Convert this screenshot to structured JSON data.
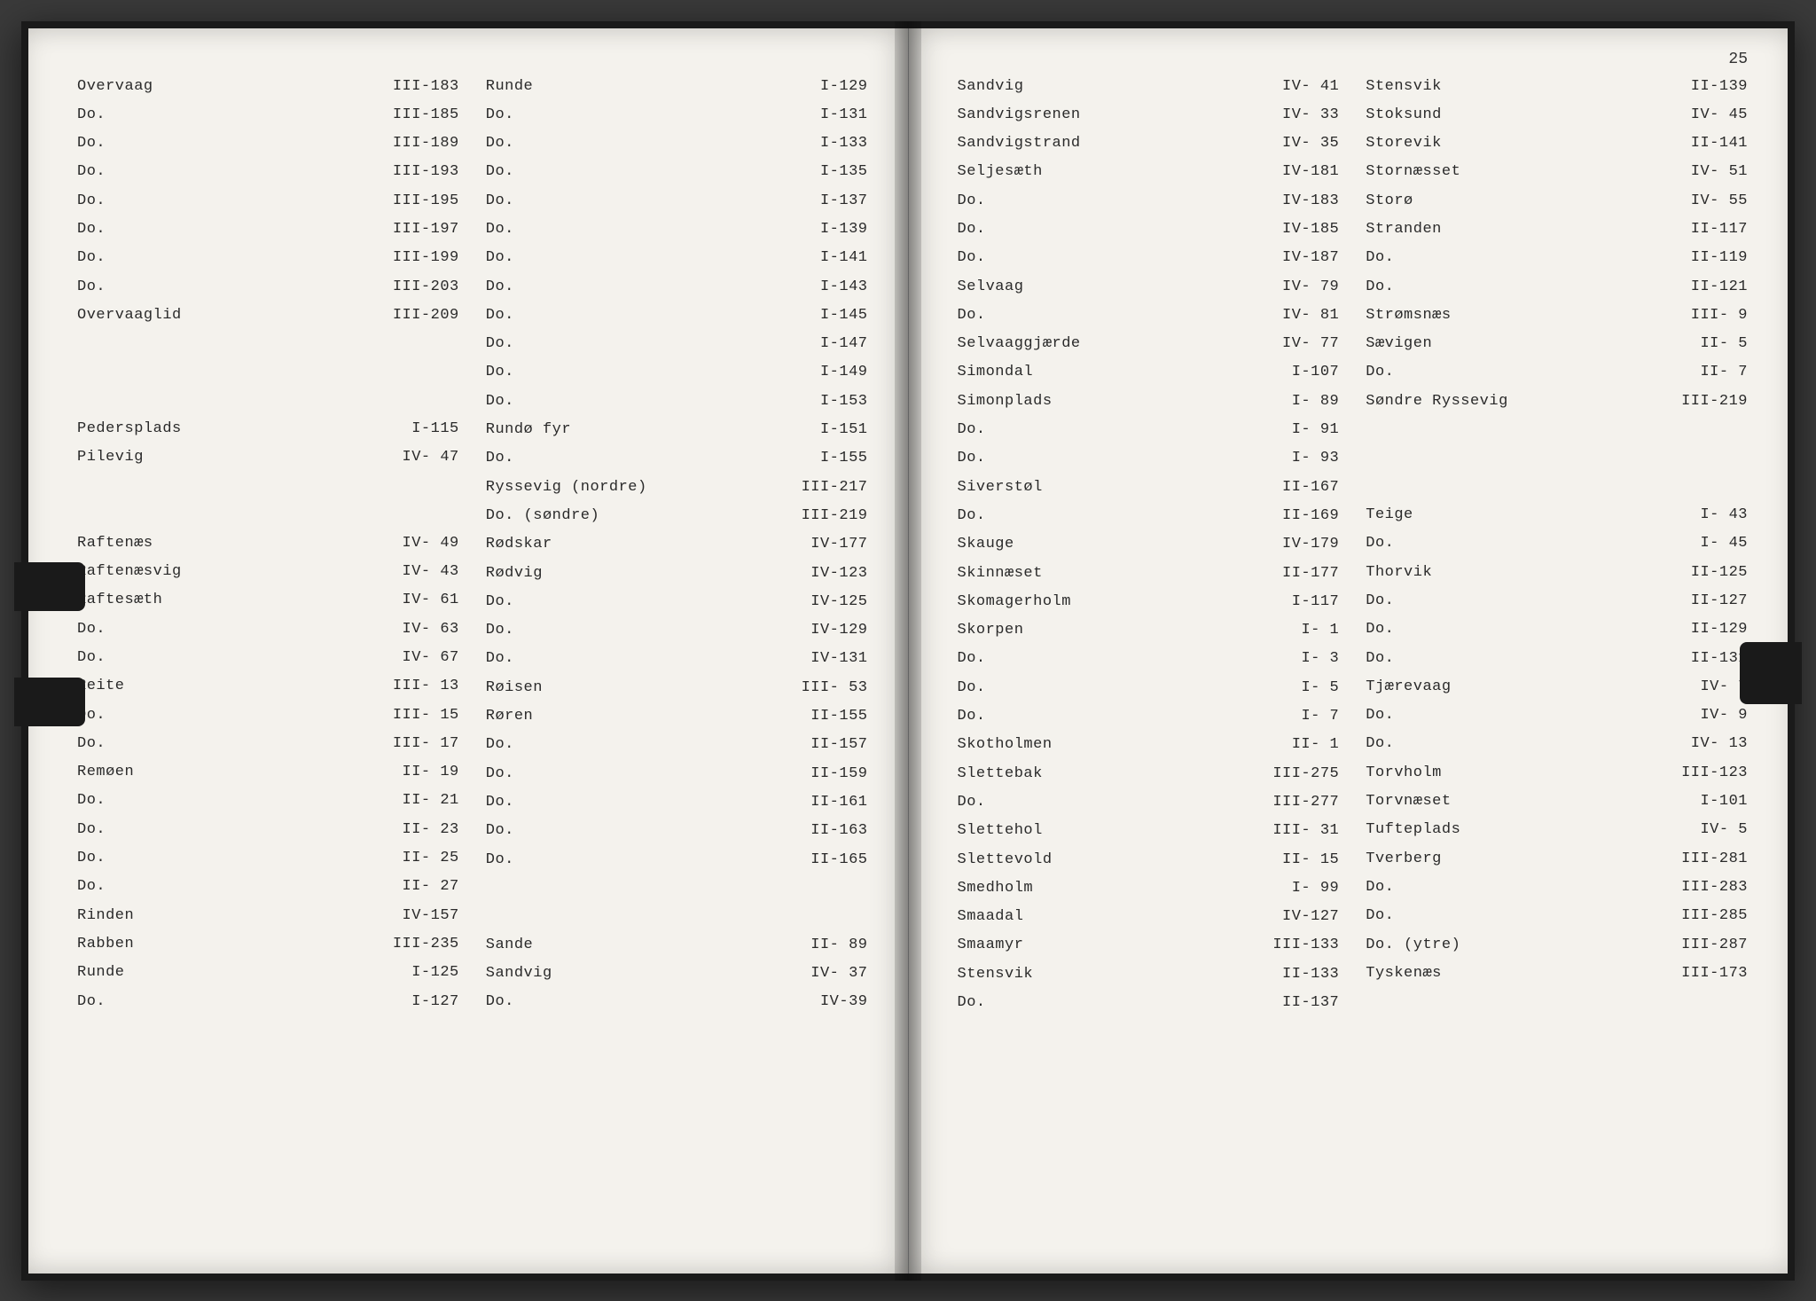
{
  "pageNumber": "25",
  "left": {
    "col1": [
      {
        "name": "Overvaag",
        "ref": "III-183"
      },
      {
        "name": "Do.",
        "ref": "III-185"
      },
      {
        "name": "Do.",
        "ref": "III-189"
      },
      {
        "name": "Do.",
        "ref": "III-193"
      },
      {
        "name": "Do.",
        "ref": "III-195"
      },
      {
        "name": "Do.",
        "ref": "III-197"
      },
      {
        "name": "Do.",
        "ref": "III-199"
      },
      {
        "name": "Do.",
        "ref": "III-203"
      },
      {
        "name": "Overvaaglid",
        "ref": "III-209"
      },
      {
        "gap": true
      },
      {
        "gap": true
      },
      {
        "gap": true
      },
      {
        "name": "Pedersplads",
        "ref": "I-115"
      },
      {
        "name": "Pilevig",
        "ref": "IV- 47"
      },
      {
        "gap": true
      },
      {
        "gap": true
      },
      {
        "name": "Raftenæs",
        "ref": "IV- 49"
      },
      {
        "name": "Raftenæsvig",
        "ref": "IV- 43"
      },
      {
        "name": "Raftesæth",
        "ref": "IV- 61"
      },
      {
        "name": "Do.",
        "ref": "IV- 63"
      },
      {
        "name": "Do.",
        "ref": "IV- 67"
      },
      {
        "name": "Reite",
        "ref": "III- 13"
      },
      {
        "name": "Do.",
        "ref": "III- 15"
      },
      {
        "name": "Do.",
        "ref": "III- 17"
      },
      {
        "name": "Remøen",
        "ref": "II- 19"
      },
      {
        "name": "Do.",
        "ref": "II- 21"
      },
      {
        "name": "Do.",
        "ref": "II- 23"
      },
      {
        "name": "Do.",
        "ref": "II- 25"
      },
      {
        "name": "Do.",
        "ref": "II- 27"
      },
      {
        "name": "Rinden",
        "ref": "IV-157"
      },
      {
        "name": "Rabben",
        "ref": "III-235"
      },
      {
        "name": "Runde",
        "ref": "I-125"
      },
      {
        "name": "Do.",
        "ref": "I-127"
      }
    ],
    "col2": [
      {
        "name": "Runde",
        "ref": "I-129"
      },
      {
        "name": "Do.",
        "ref": "I-131"
      },
      {
        "name": "Do.",
        "ref": "I-133"
      },
      {
        "name": "Do.",
        "ref": "I-135"
      },
      {
        "name": "Do.",
        "ref": "I-137"
      },
      {
        "name": "Do.",
        "ref": "I-139"
      },
      {
        "name": "Do.",
        "ref": "I-141"
      },
      {
        "name": "Do.",
        "ref": "I-143"
      },
      {
        "name": "Do.",
        "ref": "I-145"
      },
      {
        "name": "Do.",
        "ref": "I-147"
      },
      {
        "name": "Do.",
        "ref": "I-149"
      },
      {
        "name": "Do.",
        "ref": "I-153"
      },
      {
        "name": "Rundø fyr",
        "ref": "I-151"
      },
      {
        "name": "Do.",
        "ref": "I-155"
      },
      {
        "name": "Ryssevig (nordre)",
        "ref": "III-217"
      },
      {
        "name": "Do.    (søndre)",
        "ref": "III-219"
      },
      {
        "name": "Rødskar",
        "ref": "IV-177"
      },
      {
        "name": "Rødvig",
        "ref": "IV-123"
      },
      {
        "name": "Do.",
        "ref": "IV-125"
      },
      {
        "name": "Do.",
        "ref": "IV-129"
      },
      {
        "name": "Do.",
        "ref": "IV-131"
      },
      {
        "name": "Røisen",
        "ref": "III- 53"
      },
      {
        "name": "Røren",
        "ref": "II-155"
      },
      {
        "name": "Do.",
        "ref": "II-157"
      },
      {
        "name": "Do.",
        "ref": "II-159"
      },
      {
        "name": "Do.",
        "ref": "II-161"
      },
      {
        "name": "Do.",
        "ref": "II-163"
      },
      {
        "name": "Do.",
        "ref": "II-165"
      },
      {
        "gap": true
      },
      {
        "gap": true
      },
      {
        "name": "Sande",
        "ref": "II- 89"
      },
      {
        "name": "Sandvig",
        "ref": "IV- 37"
      },
      {
        "name": "Do.",
        "ref": "IV-39"
      }
    ]
  },
  "right": {
    "col1": [
      {
        "name": "Sandvig",
        "ref": "IV- 41"
      },
      {
        "name": "Sandvigsrenen",
        "ref": "IV- 33"
      },
      {
        "name": "Sandvigstrand",
        "ref": "IV- 35"
      },
      {
        "name": "Seljesæth",
        "ref": "IV-181"
      },
      {
        "name": "Do.",
        "ref": "IV-183"
      },
      {
        "name": "Do.",
        "ref": "IV-185"
      },
      {
        "name": "Do.",
        "ref": "IV-187"
      },
      {
        "name": "Selvaag",
        "ref": "IV- 79"
      },
      {
        "name": "Do.",
        "ref": "IV- 81"
      },
      {
        "name": "Selvaaggjærde",
        "ref": "IV- 77"
      },
      {
        "name": "Simondal",
        "ref": "I-107"
      },
      {
        "name": "Simonplads",
        "ref": "I- 89"
      },
      {
        "name": "Do.",
        "ref": "I- 91"
      },
      {
        "name": "Do.",
        "ref": "I- 93"
      },
      {
        "name": "Siverstøl",
        "ref": "II-167"
      },
      {
        "name": "Do.",
        "ref": "II-169"
      },
      {
        "name": "Skauge",
        "ref": "IV-179"
      },
      {
        "name": "Skinnæset",
        "ref": "II-177"
      },
      {
        "name": "Skomagerholm",
        "ref": "I-117"
      },
      {
        "name": "Skorpen",
        "ref": "I-  1"
      },
      {
        "name": "Do.",
        "ref": "I-  3"
      },
      {
        "name": "Do.",
        "ref": "I-  5"
      },
      {
        "name": "Do.",
        "ref": "I-  7"
      },
      {
        "name": "Skotholmen",
        "ref": "II- 1"
      },
      {
        "name": "Slettebak",
        "ref": "III-275"
      },
      {
        "name": "Do.",
        "ref": "III-277"
      },
      {
        "name": "Slettehol",
        "ref": "III- 31"
      },
      {
        "name": "Slettevold",
        "ref": "II- 15"
      },
      {
        "name": "Smedholm",
        "ref": "I- 99"
      },
      {
        "name": "Smaadal",
        "ref": "IV-127"
      },
      {
        "name": "Smaamyr",
        "ref": "III-133"
      },
      {
        "name": "Stensvik",
        "ref": "II-133"
      },
      {
        "name": "Do.",
        "ref": "II-137"
      }
    ],
    "col2": [
      {
        "name": "Stensvik",
        "ref": "II-139"
      },
      {
        "name": "Stoksund",
        "ref": "IV- 45"
      },
      {
        "name": "Storevik",
        "ref": "II-141"
      },
      {
        "name": "Stornæsset",
        "ref": "IV- 51"
      },
      {
        "name": "Storø",
        "ref": "IV- 55"
      },
      {
        "name": "Stranden",
        "ref": "II-117"
      },
      {
        "name": "Do.",
        "ref": "II-119"
      },
      {
        "name": "Do.",
        "ref": "II-121"
      },
      {
        "name": "Strømsnæs",
        "ref": "III-  9"
      },
      {
        "name": "Sævigen",
        "ref": "II-  5"
      },
      {
        "name": "Do.",
        "ref": "II-  7"
      },
      {
        "name": "Søndre Ryssevig",
        "ref": "III-219"
      },
      {
        "gap": true
      },
      {
        "gap": true
      },
      {
        "gap": true
      },
      {
        "name": "Teige",
        "ref": "I- 43"
      },
      {
        "name": "Do.",
        "ref": "I- 45"
      },
      {
        "name": "Thorvik",
        "ref": "II-125"
      },
      {
        "name": "Do.",
        "ref": "II-127"
      },
      {
        "name": "Do.",
        "ref": "II-129"
      },
      {
        "name": "Do.",
        "ref": "II-131"
      },
      {
        "name": "Tjærevaag",
        "ref": "IV-  7"
      },
      {
        "name": "Do.",
        "ref": "IV-  9"
      },
      {
        "name": "Do.",
        "ref": "IV- 13"
      },
      {
        "name": "Torvholm",
        "ref": "III-123"
      },
      {
        "name": "Torvnæset",
        "ref": "I-101"
      },
      {
        "name": "Tufteplads",
        "ref": "IV-  5"
      },
      {
        "name": "Tverberg",
        "ref": "III-281"
      },
      {
        "name": "Do.",
        "ref": "III-283"
      },
      {
        "name": "Do.",
        "ref": "III-285"
      },
      {
        "name": "Do. (ytre)",
        "ref": "III-287"
      },
      {
        "name": "Tyskenæs",
        "ref": "III-173"
      }
    ]
  }
}
